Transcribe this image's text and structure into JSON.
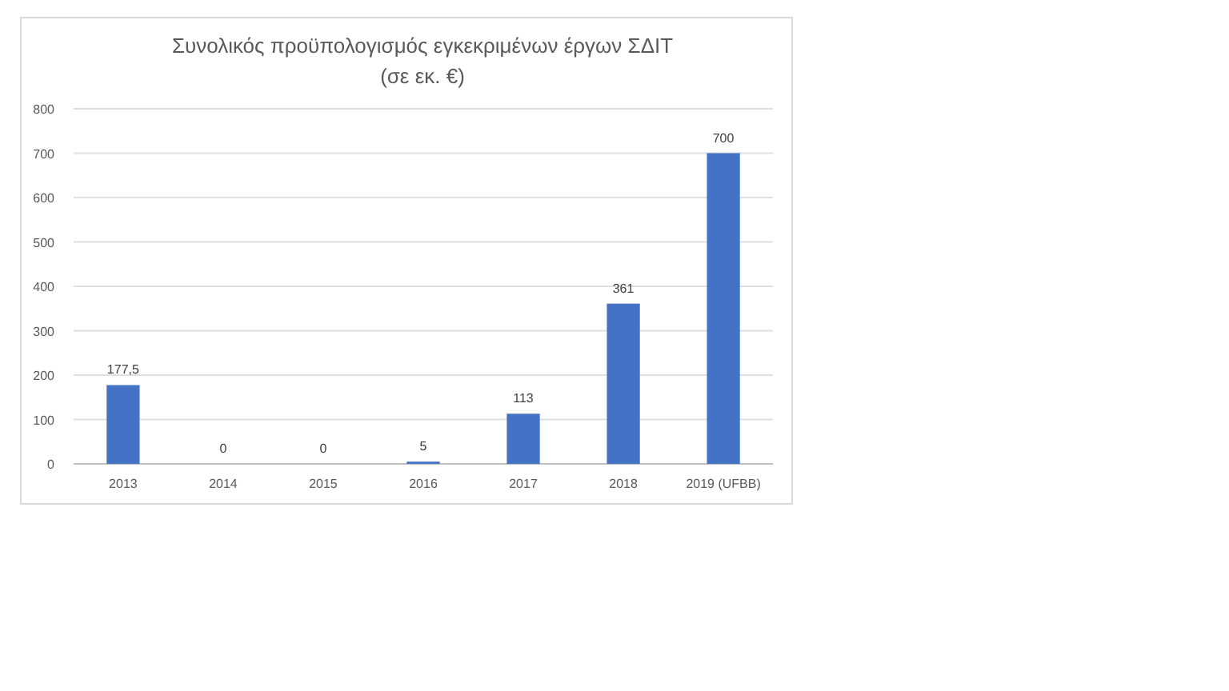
{
  "chart_data": {
    "type": "bar",
    "title": "Συνολικός προϋπολογισμός εγκεκριμένων έργων ΣΔΙΤ",
    "subtitle": "(σε εκ. €)",
    "categories": [
      "2013",
      "2014",
      "2015",
      "2016",
      "2017",
      "2018",
      "2019 (UFBB)"
    ],
    "values": [
      177.5,
      0,
      0,
      5,
      113,
      361,
      700
    ],
    "value_labels": [
      "177,5",
      "0",
      "0",
      "5",
      "113",
      "361",
      "700"
    ],
    "color": "#4472c4",
    "ylim": [
      0,
      800
    ],
    "yticks": [
      0,
      100,
      200,
      300,
      400,
      500,
      600,
      700,
      800
    ],
    "grid": "y"
  }
}
